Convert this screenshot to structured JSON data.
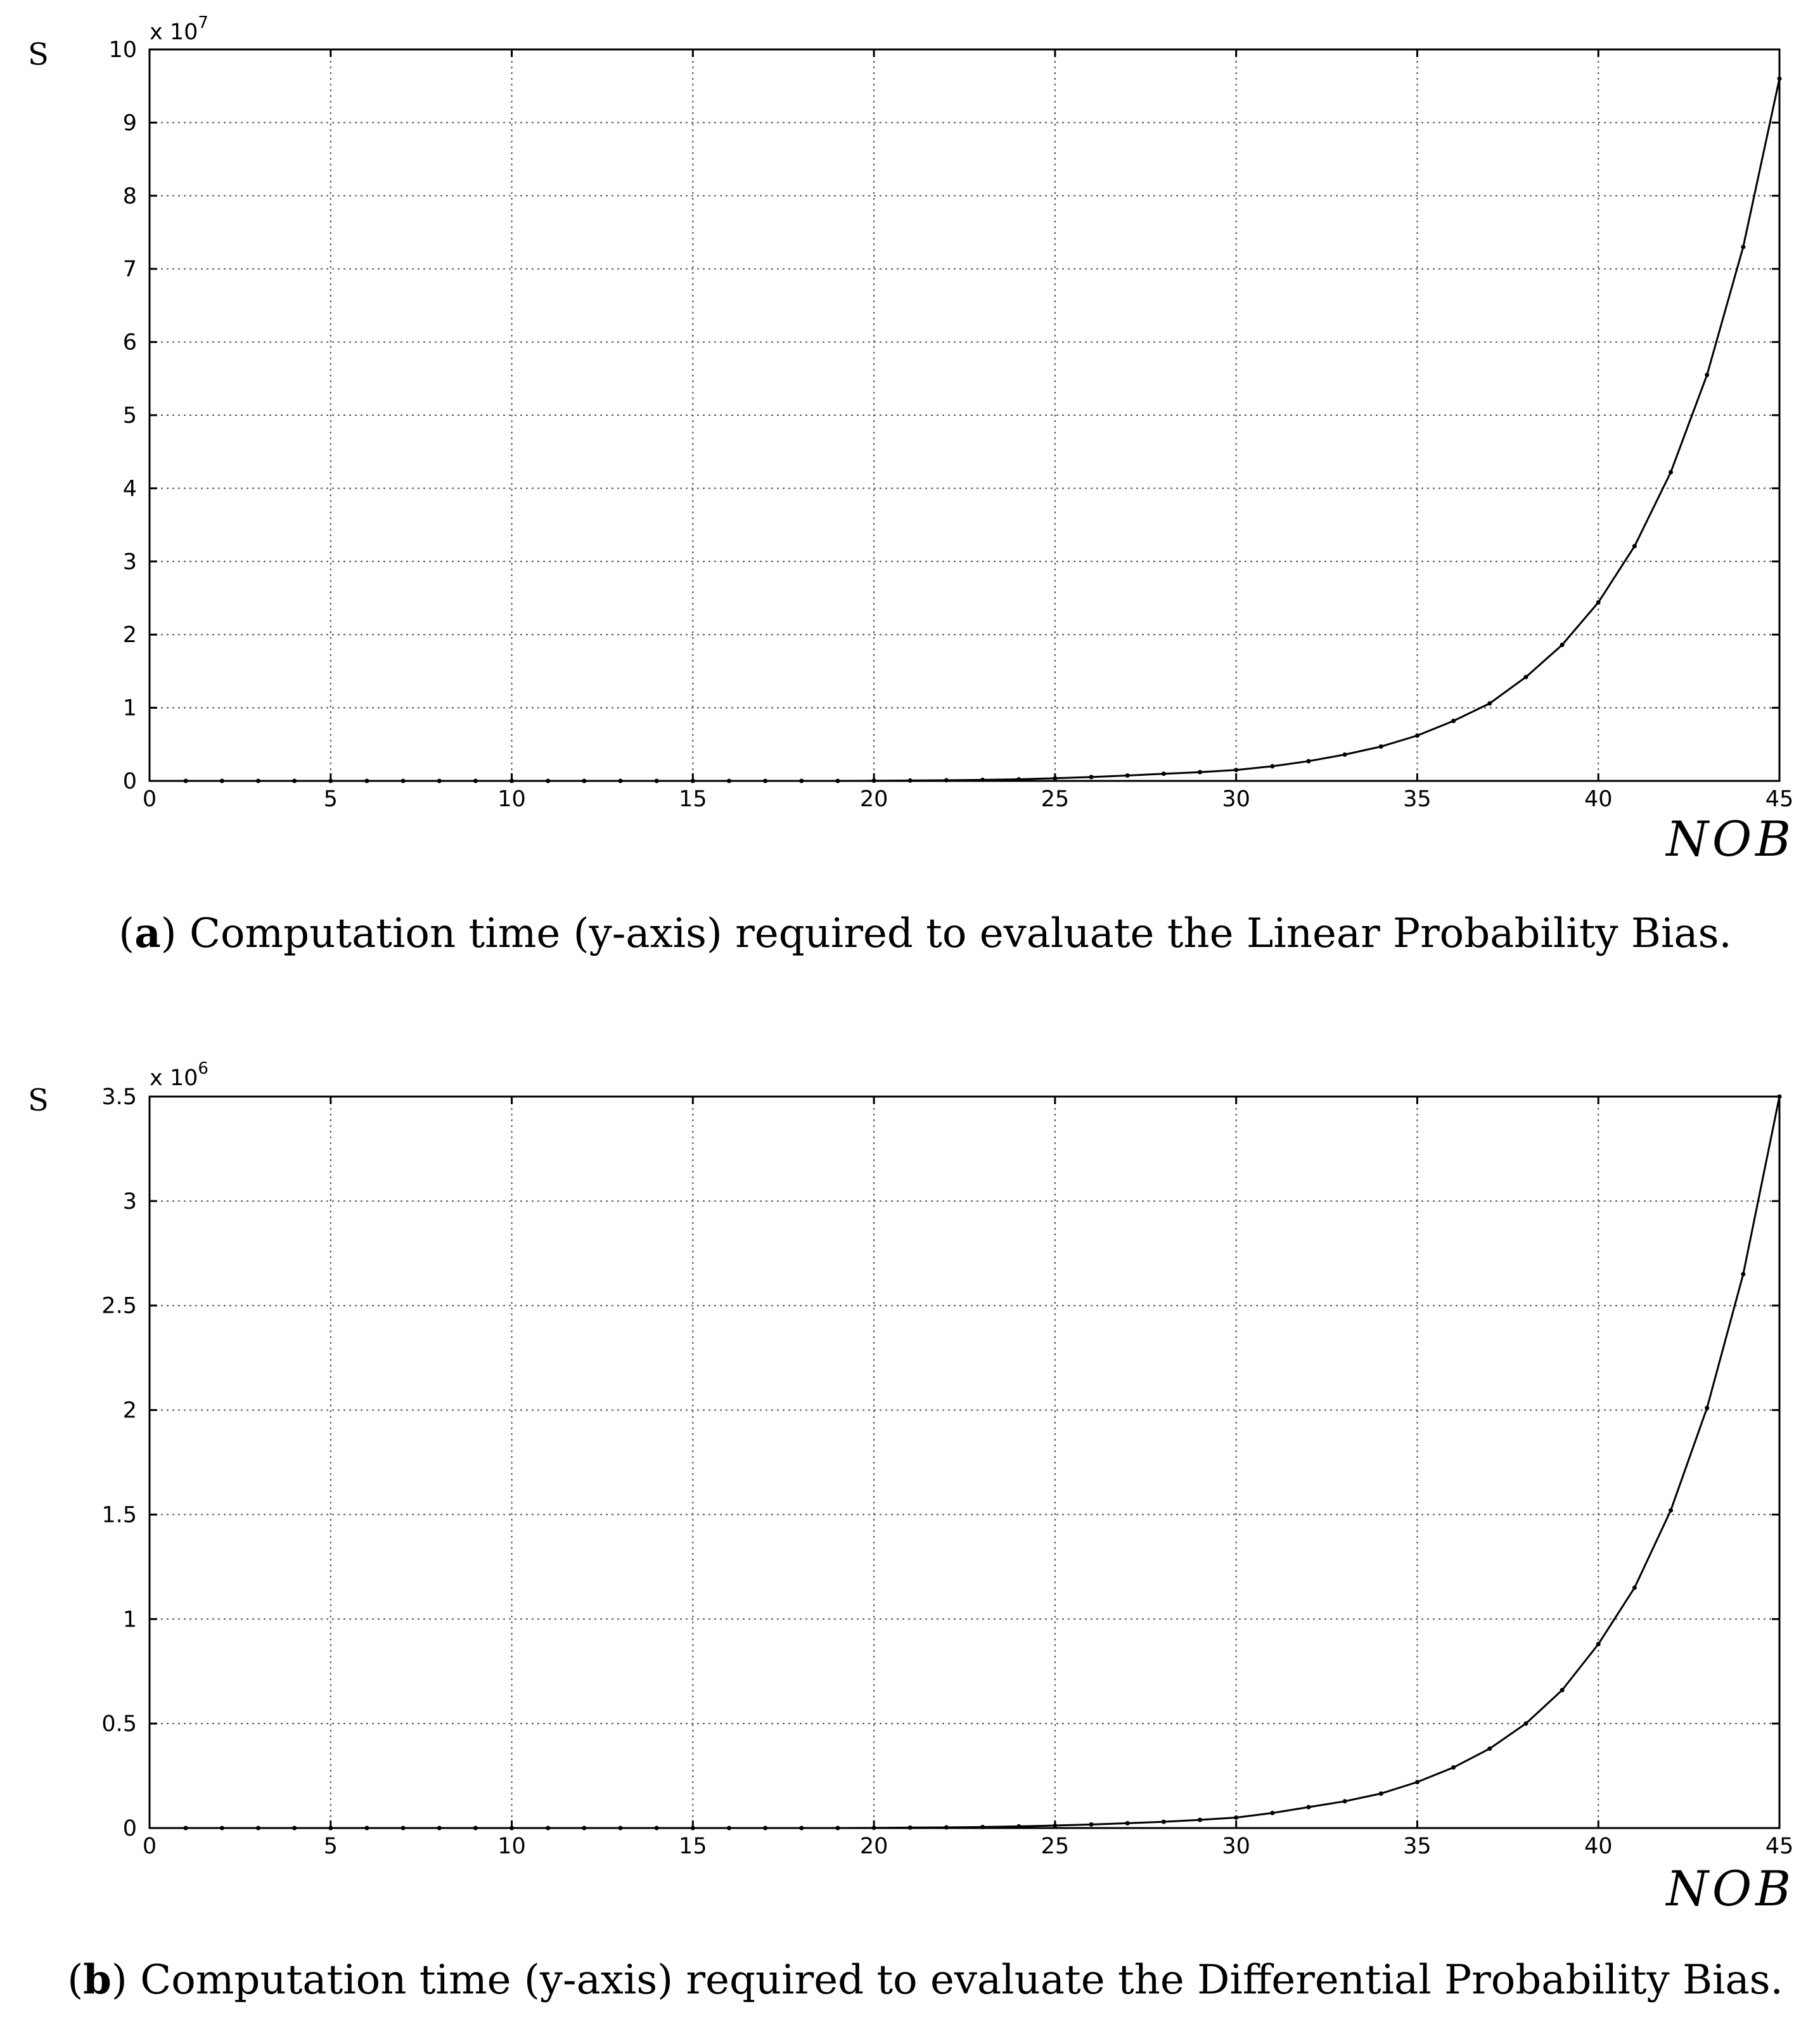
{
  "chart_data": [
    {
      "type": "line",
      "panel": "a",
      "caption": {
        "label": "a",
        "text": "Computation time (y-axis) required to evaluate the Linear Probability Bias."
      },
      "ylabel": "S",
      "xlabel": "NOB",
      "multiplier_base": "x 10",
      "multiplier_exp": "7",
      "xlim": [
        0,
        45
      ],
      "ylim": [
        0,
        10
      ],
      "xticks": [
        0,
        5,
        10,
        15,
        20,
        25,
        30,
        35,
        40,
        45
      ],
      "yticks": [
        0,
        1,
        2,
        3,
        4,
        5,
        6,
        7,
        8,
        9,
        10
      ],
      "grid": true,
      "x": [
        1,
        2,
        3,
        4,
        5,
        6,
        7,
        8,
        9,
        10,
        11,
        12,
        13,
        14,
        15,
        16,
        17,
        18,
        19,
        20,
        21,
        22,
        23,
        24,
        25,
        26,
        27,
        28,
        29,
        30,
        31,
        32,
        33,
        34,
        35,
        36,
        37,
        38,
        39,
        40,
        41,
        42,
        43,
        44,
        45
      ],
      "y": [
        0,
        0,
        0,
        0,
        0,
        0,
        0,
        0,
        0,
        0,
        0,
        0,
        0,
        0,
        0,
        0,
        0,
        0,
        0,
        0.003,
        0.005,
        0.009,
        0.014,
        0.022,
        0.036,
        0.053,
        0.074,
        0.098,
        0.12,
        0.15,
        0.2,
        0.27,
        0.36,
        0.47,
        0.62,
        0.82,
        1.06,
        1.42,
        1.86,
        2.44,
        3.21,
        4.22,
        5.55,
        7.3,
        9.6
      ]
    },
    {
      "type": "line",
      "panel": "b",
      "caption": {
        "label": "b",
        "text": "Computation time (y-axis) required to evaluate the Differential Probability Bias."
      },
      "ylabel": "S",
      "xlabel": "NOB",
      "multiplier_base": "x 10",
      "multiplier_exp": "6",
      "xlim": [
        0,
        45
      ],
      "ylim": [
        0,
        3.5
      ],
      "xticks": [
        0,
        5,
        10,
        15,
        20,
        25,
        30,
        35,
        40,
        45
      ],
      "yticks": [
        0,
        0.5,
        1,
        1.5,
        2,
        2.5,
        3,
        3.5
      ],
      "grid": true,
      "x": [
        1,
        2,
        3,
        4,
        5,
        6,
        7,
        8,
        9,
        10,
        11,
        12,
        13,
        14,
        15,
        16,
        17,
        18,
        19,
        20,
        21,
        22,
        23,
        24,
        25,
        26,
        27,
        28,
        29,
        30,
        31,
        32,
        33,
        34,
        35,
        36,
        37,
        38,
        39,
        40,
        41,
        42,
        43,
        44,
        45
      ],
      "y": [
        0,
        0,
        0,
        0,
        0,
        0,
        0,
        0,
        0,
        0,
        0,
        0,
        0,
        0,
        0,
        0,
        0,
        0,
        0,
        0.001,
        0.002,
        0.003,
        0.005,
        0.008,
        0.012,
        0.017,
        0.023,
        0.03,
        0.039,
        0.05,
        0.072,
        0.1,
        0.128,
        0.165,
        0.22,
        0.29,
        0.38,
        0.5,
        0.66,
        0.88,
        1.15,
        1.52,
        2.01,
        2.65,
        3.5
      ]
    }
  ]
}
